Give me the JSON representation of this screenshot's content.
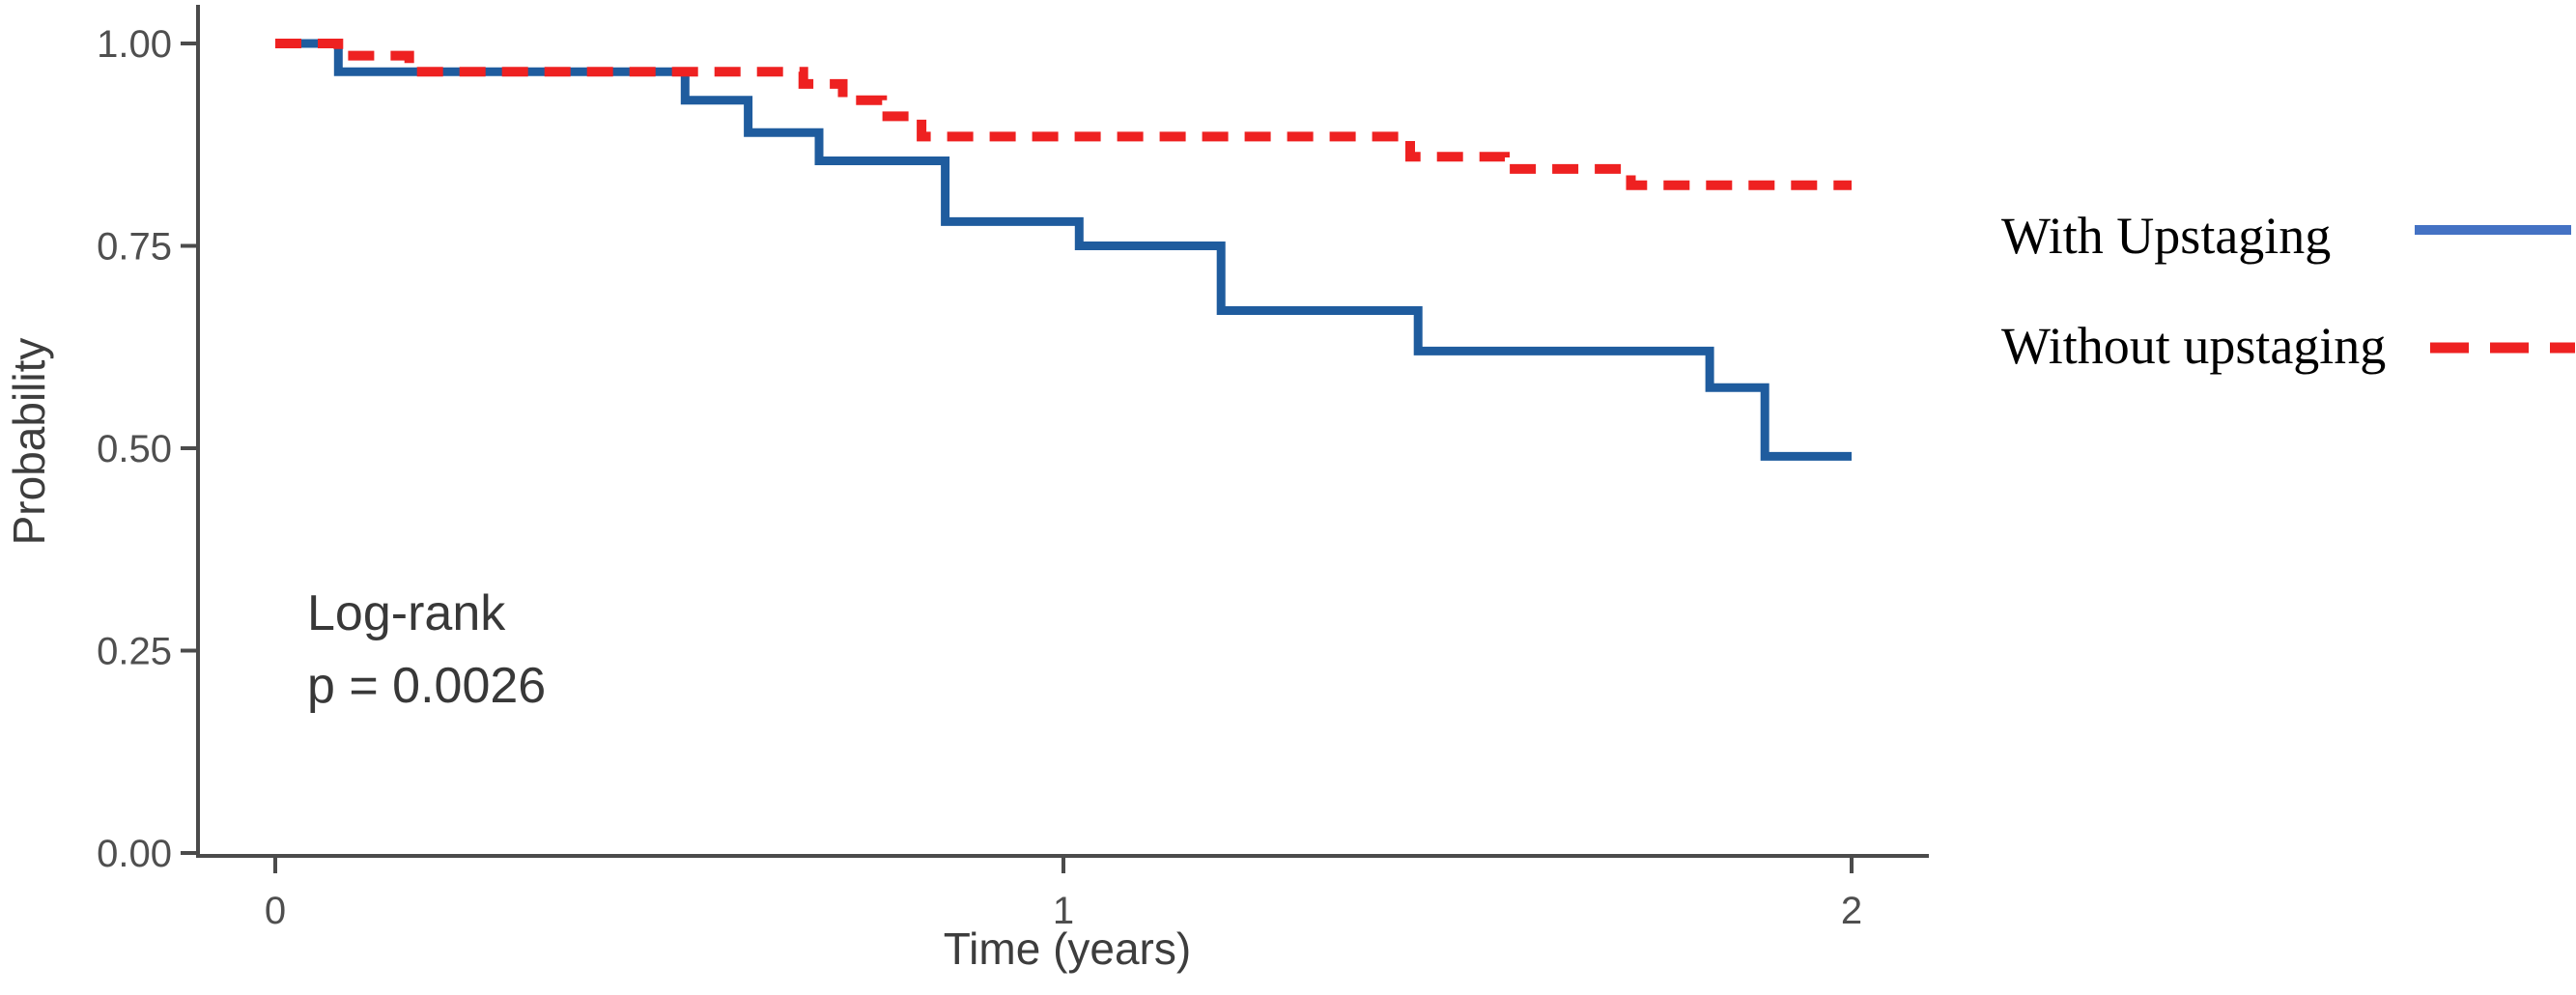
{
  "figure": {
    "background": "#ffffff"
  },
  "axes": {
    "ylabel": "Probability",
    "xlabel": "Time (years)",
    "axis_color": "#4b4b4b",
    "tick_color": "#4b4b4b",
    "tick_label_color": "#4f4f4f",
    "title_color": "#3d3d3d",
    "x_ticks": [
      {
        "value": 0,
        "label": "0"
      },
      {
        "value": 1,
        "label": "1"
      },
      {
        "value": 2,
        "label": "2"
      }
    ],
    "y_ticks": [
      {
        "value": 0.0,
        "label": "0.00"
      },
      {
        "value": 0.25,
        "label": "0.25"
      },
      {
        "value": 0.5,
        "label": "0.50"
      },
      {
        "value": 0.75,
        "label": "0.75"
      },
      {
        "value": 1.0,
        "label": "1.00"
      }
    ]
  },
  "annotation": {
    "line1": "Log-rank",
    "line2": "p = 0.0026",
    "color": "#383838"
  },
  "legend": {
    "text_color": "#000000",
    "items": [
      {
        "label": "With Upstaging",
        "line_color": "#4472c4",
        "line_style": "solid"
      },
      {
        "label": "Without upstaging",
        "line_color": "#ee2121",
        "line_style": "dashed"
      }
    ]
  },
  "chart_data": {
    "type": "line",
    "subtype": "kaplan-meier-step",
    "title": "",
    "xlabel": "Time (years)",
    "ylabel": "Probability",
    "xlim": [
      0,
      2
    ],
    "ylim": [
      0,
      1
    ],
    "x_ticks": [
      0,
      1,
      2
    ],
    "y_ticks": [
      0,
      0.25,
      0.5,
      0.75,
      1
    ],
    "grid": false,
    "legend_position": "right",
    "annotations": [
      "Log-rank",
      "p = 0.0026"
    ],
    "series": [
      {
        "name": "With Upstaging",
        "color": "#1f5c9e",
        "line_style": "solid",
        "step": true,
        "points": [
          [
            0,
            1.0
          ],
          [
            0.08,
            1.0
          ],
          [
            0.08,
            0.965
          ],
          [
            0.52,
            0.965
          ],
          [
            0.52,
            0.93
          ],
          [
            0.6,
            0.93
          ],
          [
            0.6,
            0.89
          ],
          [
            0.69,
            0.89
          ],
          [
            0.69,
            0.855
          ],
          [
            0.85,
            0.855
          ],
          [
            0.85,
            0.78
          ],
          [
            1.02,
            0.78
          ],
          [
            1.02,
            0.75
          ],
          [
            1.2,
            0.75
          ],
          [
            1.2,
            0.67
          ],
          [
            1.45,
            0.67
          ],
          [
            1.45,
            0.62
          ],
          [
            1.82,
            0.62
          ],
          [
            1.82,
            0.575
          ],
          [
            1.89,
            0.575
          ],
          [
            1.89,
            0.49
          ],
          [
            2.0,
            0.49
          ]
        ]
      },
      {
        "name": "Without upstaging",
        "color": "#ee2121",
        "line_style": "dashed",
        "step": true,
        "points": [
          [
            0,
            1.0
          ],
          [
            0.08,
            1.0
          ],
          [
            0.08,
            0.985
          ],
          [
            0.17,
            0.985
          ],
          [
            0.17,
            0.965
          ],
          [
            0.67,
            0.965
          ],
          [
            0.67,
            0.95
          ],
          [
            0.72,
            0.95
          ],
          [
            0.72,
            0.93
          ],
          [
            0.77,
            0.93
          ],
          [
            0.77,
            0.91
          ],
          [
            0.82,
            0.91
          ],
          [
            0.82,
            0.885
          ],
          [
            1.44,
            0.885
          ],
          [
            1.44,
            0.86
          ],
          [
            1.56,
            0.86
          ],
          [
            1.56,
            0.845
          ],
          [
            1.72,
            0.845
          ],
          [
            1.72,
            0.825
          ],
          [
            2.0,
            0.825
          ]
        ]
      }
    ]
  }
}
